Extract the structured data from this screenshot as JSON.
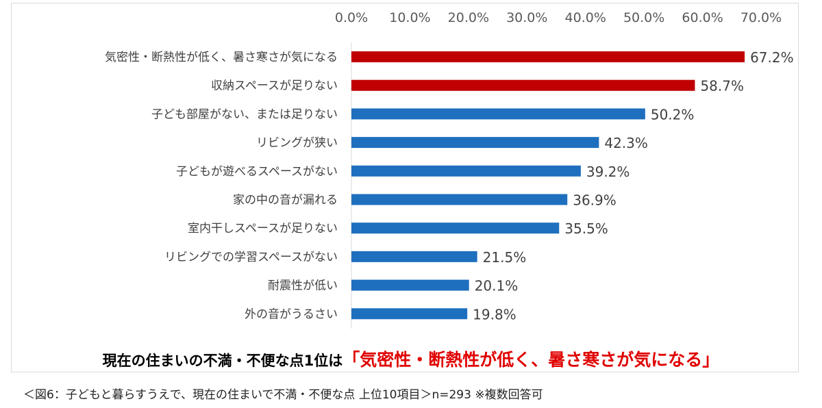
{
  "chart_data": {
    "type": "bar",
    "orientation": "horizontal",
    "categories": [
      "気密性・断熱性が低く、暑さ寒さが気になる",
      "収納スペースが足りない",
      "子ども部屋がない、または足りない",
      "リビングが狭い",
      "子どもが遊べるスペースがない",
      "家の中の音が漏れる",
      "室内干しスペースが足りない",
      "リビングでの学習スペースがない",
      "耐震性が低い",
      "外の音がうるさい"
    ],
    "values": [
      67.2,
      58.7,
      50.2,
      42.3,
      39.2,
      36.9,
      35.5,
      21.5,
      20.1,
      19.8
    ],
    "value_labels": [
      "67.2%",
      "58.7%",
      "50.2%",
      "42.3%",
      "39.2%",
      "36.9%",
      "35.5%",
      "21.5%",
      "20.1%",
      "19.8%"
    ],
    "highlight_count": 2,
    "xlim": [
      0,
      70
    ],
    "x_ticks": [
      "0.0%",
      "10.0%",
      "20.0%",
      "30.0%",
      "40.0%",
      "50.0%",
      "60.0%",
      "70.0%"
    ],
    "axis_position": "top",
    "grid": false,
    "colors": {
      "highlight": "#c00000",
      "normal": "#1f6fbf"
    }
  },
  "headline": {
    "prefix": "現在の住まいの不満・不便な点1位は",
    "highlight": "「気密性・断熱性が低く、暑さ寒さが気になる」"
  },
  "caption": "＜図6：子どもと暮らすうえで、現在の住まいで不満・不便な点 上位10項目＞n=293 ※複数回答可"
}
